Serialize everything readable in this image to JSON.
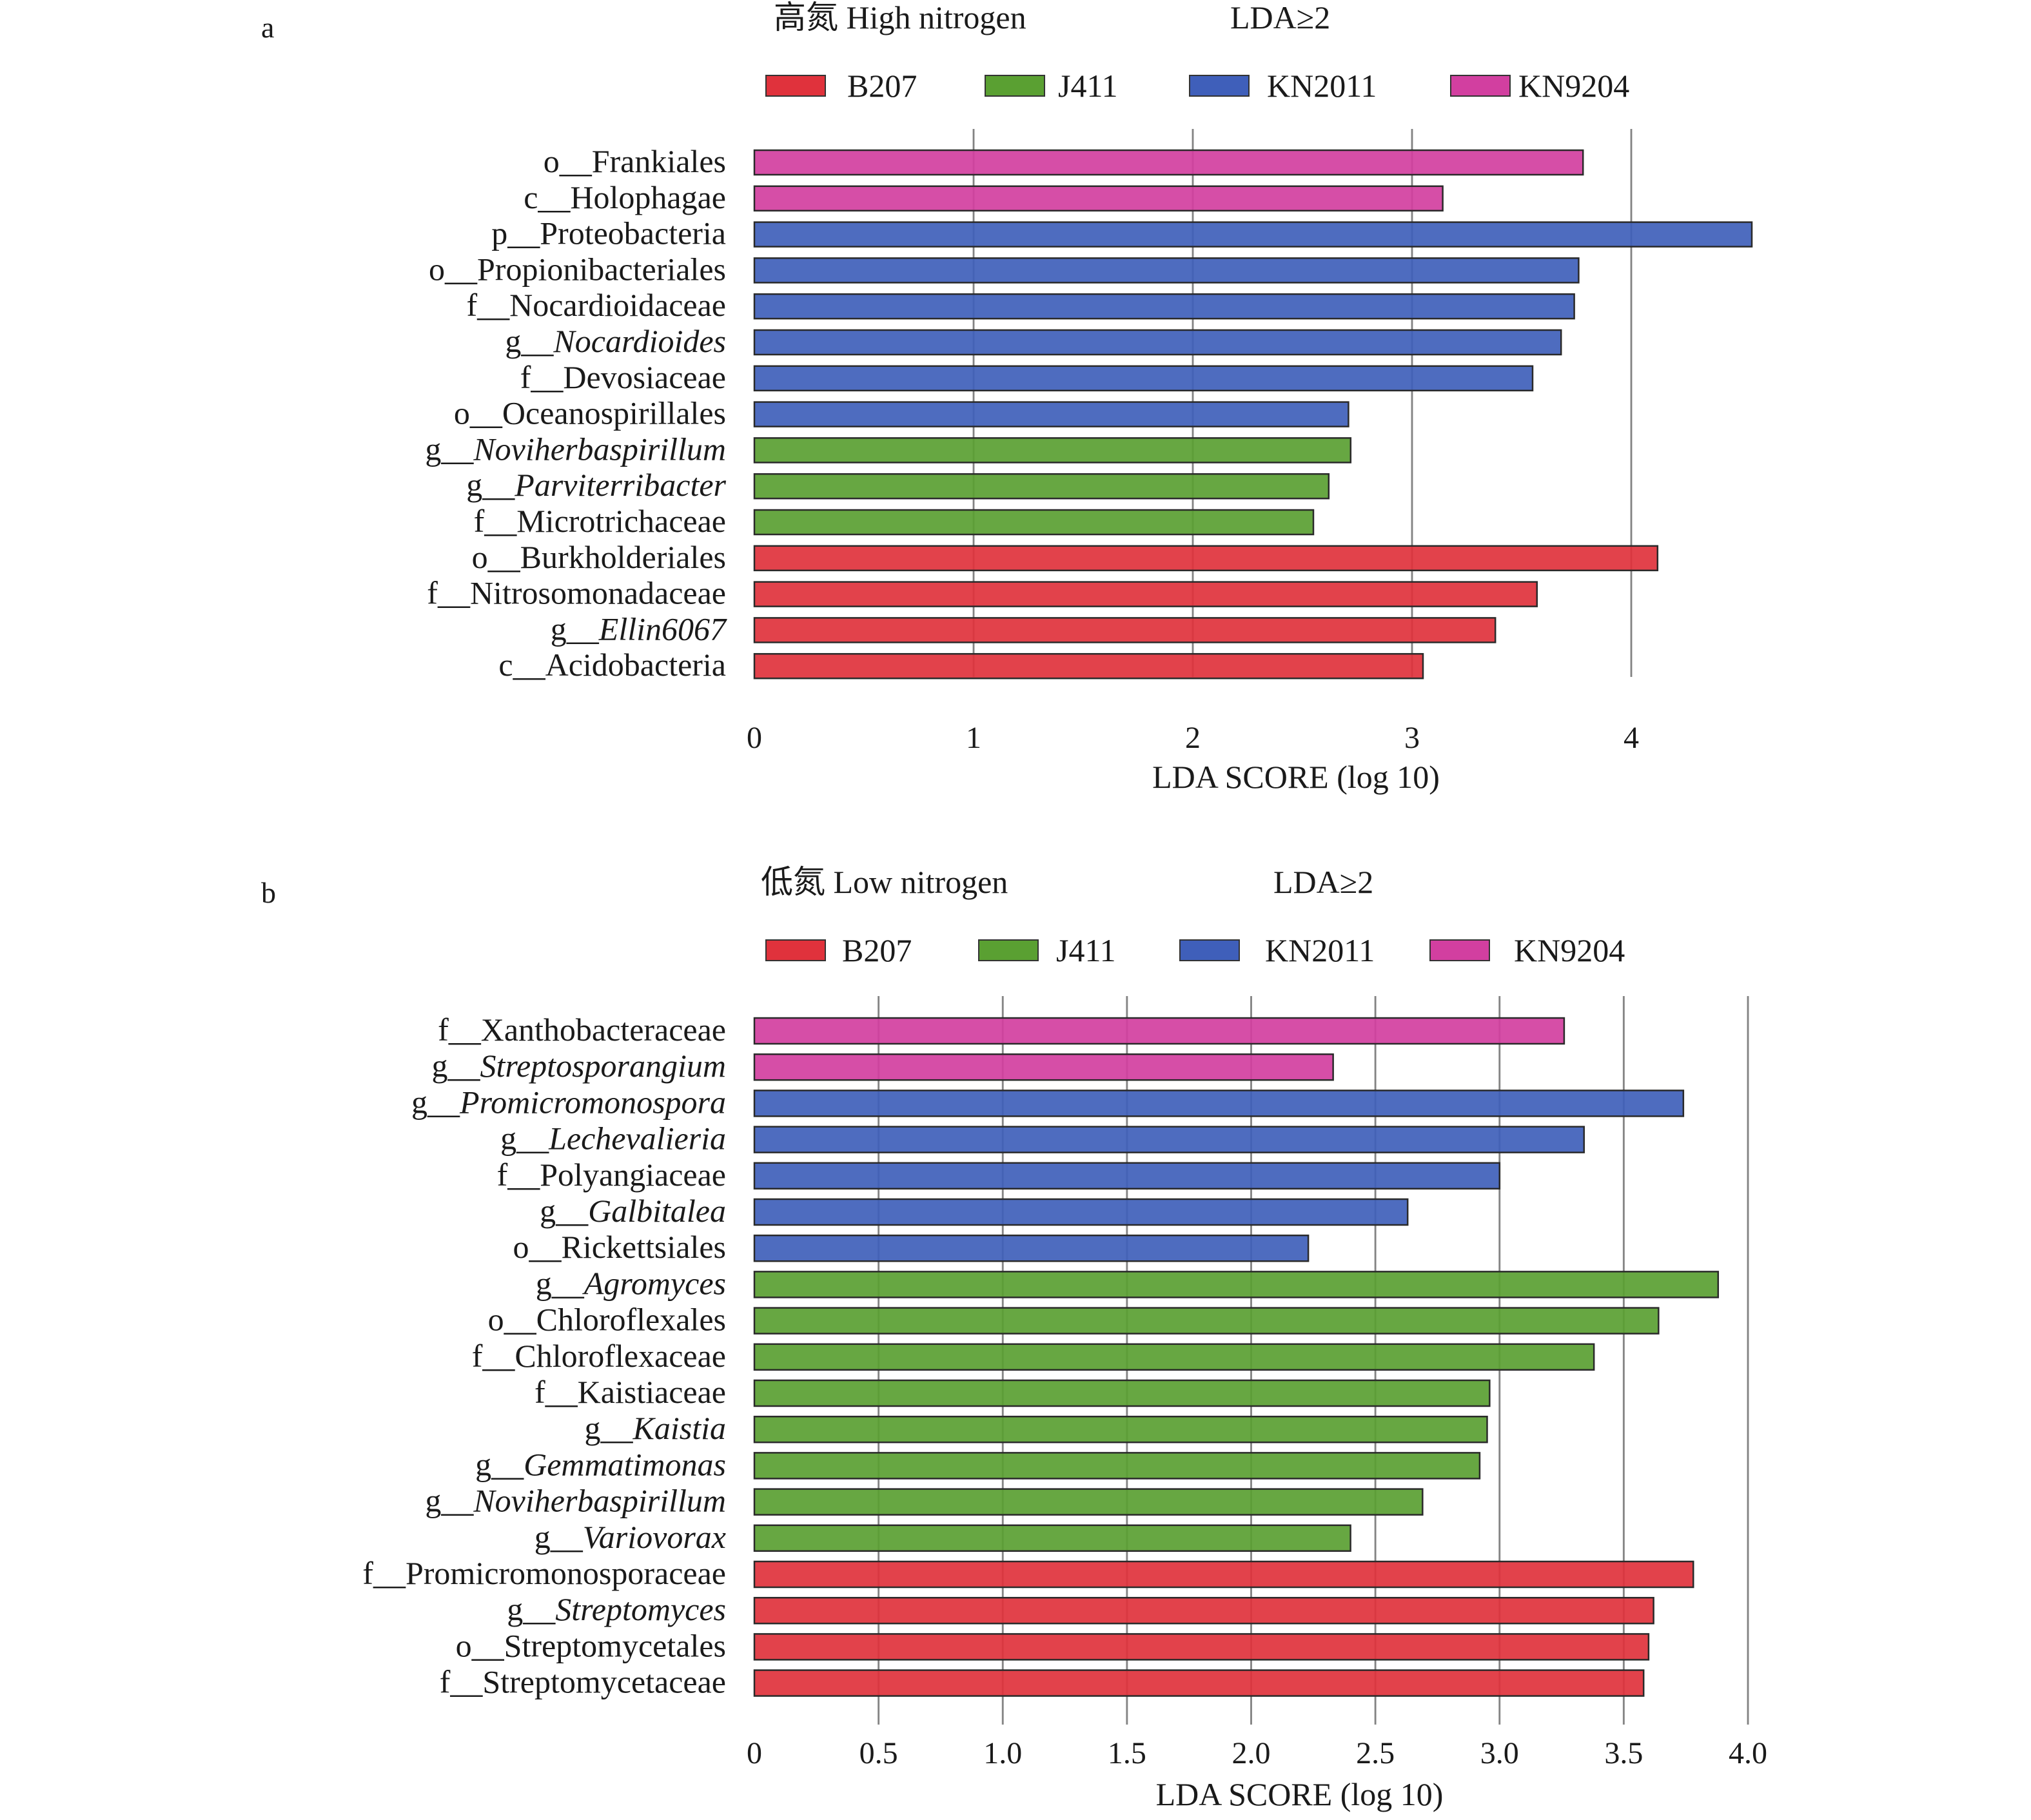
{
  "colors": {
    "B207": "#e0323c",
    "J411": "#5aa032",
    "KN2011": "#3f5fba",
    "KN9204": "#d23fa0"
  },
  "chart_data": [
    {
      "type": "bar",
      "orientation": "horizontal",
      "panel": "a",
      "title": "高氮 High nitrogen",
      "threshold_label": "LDA≥2",
      "legend": [
        "B207",
        "J411",
        "KN2011",
        "KN9204"
      ],
      "legend_placement": "top",
      "xlabel": "LDA SCORE (log 10)",
      "xlim": [
        0,
        4.5
      ],
      "ticks": [
        0,
        1,
        2,
        3,
        4
      ],
      "tick_labels": [
        "0",
        "1",
        "2",
        "3",
        "4"
      ],
      "grid": true,
      "bars": [
        {
          "prefix": "o__",
          "name": "Frankiales",
          "italic": false,
          "value": 3.78,
          "group": "KN9204"
        },
        {
          "prefix": "c__",
          "name": "Holophagae",
          "italic": false,
          "value": 3.14,
          "group": "KN9204"
        },
        {
          "prefix": "p__",
          "name": "Proteobacteria",
          "italic": false,
          "value": 4.55,
          "group": "KN2011"
        },
        {
          "prefix": "o__",
          "name": "Propionibacteriales",
          "italic": false,
          "value": 3.76,
          "group": "KN2011"
        },
        {
          "prefix": "f__",
          "name": "Nocardioidaceae",
          "italic": false,
          "value": 3.74,
          "group": "KN2011"
        },
        {
          "prefix": "g__",
          "name": "Nocardioides",
          "italic": true,
          "value": 3.68,
          "group": "KN2011"
        },
        {
          "prefix": "f__",
          "name": "Devosiaceae",
          "italic": false,
          "value": 3.55,
          "group": "KN2011"
        },
        {
          "prefix": "o__",
          "name": "Oceanospirillales",
          "italic": false,
          "value": 2.71,
          "group": "KN2011"
        },
        {
          "prefix": "g__",
          "name": "Noviherbaspirillum",
          "italic": true,
          "value": 2.72,
          "group": "J411"
        },
        {
          "prefix": "g__",
          "name": "Parviterribacter",
          "italic": true,
          "value": 2.62,
          "group": "J411"
        },
        {
          "prefix": "f__",
          "name": "Microtrichaceae",
          "italic": false,
          "value": 2.55,
          "group": "J411"
        },
        {
          "prefix": "o__",
          "name": "Burkholderiales",
          "italic": false,
          "value": 4.12,
          "group": "B207"
        },
        {
          "prefix": "f__",
          "name": "Nitrosomonadaceae",
          "italic": false,
          "value": 3.57,
          "group": "B207"
        },
        {
          "prefix": "g__",
          "name": "Ellin6067",
          "italic": true,
          "value": 3.38,
          "group": "B207"
        },
        {
          "prefix": "c__",
          "name": "Acidobacteria",
          "italic": false,
          "value": 3.05,
          "group": "B207"
        }
      ]
    },
    {
      "type": "bar",
      "orientation": "horizontal",
      "panel": "b",
      "title": "低氮 Low nitrogen",
      "threshold_label": "LDA≥2",
      "legend": [
        "B207",
        "J411",
        "KN2011",
        "KN9204"
      ],
      "legend_placement": "top",
      "xlabel": "LDA SCORE (log 10)",
      "xlim": [
        0,
        4.0
      ],
      "ticks": [
        0,
        0.5,
        1.0,
        1.5,
        2.0,
        2.5,
        3.0,
        3.5,
        4.0
      ],
      "tick_labels": [
        "0",
        "0.5",
        "1.0",
        "1.5",
        "2.0",
        "2.5",
        "3.0",
        "3.5",
        "4.0"
      ],
      "grid": true,
      "bars": [
        {
          "prefix": "f__",
          "name": "Xanthobacteraceae",
          "italic": false,
          "value": 3.26,
          "group": "KN9204"
        },
        {
          "prefix": "g__",
          "name": "Streptosporangium",
          "italic": true,
          "value": 2.33,
          "group": "KN9204"
        },
        {
          "prefix": "g__",
          "name": "Promicromonospora",
          "italic": true,
          "value": 3.74,
          "group": "KN2011"
        },
        {
          "prefix": "g__",
          "name": "Lechevalieria",
          "italic": true,
          "value": 3.34,
          "group": "KN2011"
        },
        {
          "prefix": "f__",
          "name": "Polyangiaceae",
          "italic": false,
          "value": 3.0,
          "group": "KN2011"
        },
        {
          "prefix": "g__",
          "name": "Galbitalea",
          "italic": true,
          "value": 2.63,
          "group": "KN2011"
        },
        {
          "prefix": "o__",
          "name": "Rickettsiales",
          "italic": false,
          "value": 2.23,
          "group": "KN2011"
        },
        {
          "prefix": "g__",
          "name": "Agromyces",
          "italic": true,
          "value": 3.88,
          "group": "J411"
        },
        {
          "prefix": "o__",
          "name": "Chloroflexales",
          "italic": false,
          "value": 3.64,
          "group": "J411"
        },
        {
          "prefix": "f__",
          "name": "Chloroflexaceae",
          "italic": false,
          "value": 3.38,
          "group": "J411"
        },
        {
          "prefix": "f__",
          "name": "Kaistiaceae",
          "italic": false,
          "value": 2.96,
          "group": "J411"
        },
        {
          "prefix": "g__",
          "name": "Kaistia",
          "italic": true,
          "value": 2.95,
          "group": "J411"
        },
        {
          "prefix": "g__",
          "name": "Gemmatimonas",
          "italic": true,
          "value": 2.92,
          "group": "J411"
        },
        {
          "prefix": "g__",
          "name": "Noviherbaspirillum",
          "italic": true,
          "value": 2.69,
          "group": "J411"
        },
        {
          "prefix": "g__",
          "name": "Variovorax",
          "italic": true,
          "value": 2.4,
          "group": "J411"
        },
        {
          "prefix": "f__",
          "name": "Promicromonosporaceae",
          "italic": false,
          "value": 3.78,
          "group": "B207"
        },
        {
          "prefix": "g__",
          "name": "Streptomyces",
          "italic": true,
          "value": 3.62,
          "group": "B207"
        },
        {
          "prefix": "o__",
          "name": "Streptomycetales",
          "italic": false,
          "value": 3.6,
          "group": "B207"
        },
        {
          "prefix": "f__",
          "name": "Streptomycetaceae",
          "italic": false,
          "value": 3.58,
          "group": "B207"
        }
      ]
    }
  ]
}
